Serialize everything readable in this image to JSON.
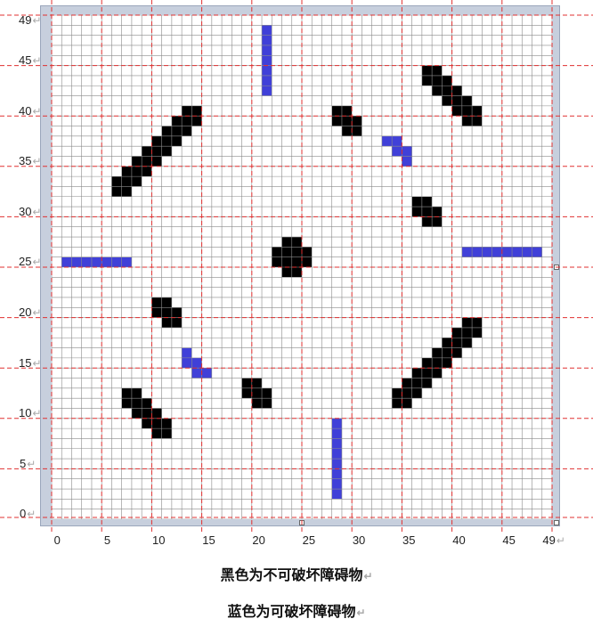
{
  "grid": {
    "size": 50,
    "y_tick_labels": [
      "49",
      "45",
      "40",
      "35",
      "30",
      "25",
      "20",
      "15",
      "10",
      "5",
      "0"
    ],
    "x_tick_labels": [
      "0",
      "5",
      "10",
      "15",
      "20",
      "25",
      "30",
      "35",
      "40",
      "45",
      "49"
    ],
    "line_mark": "↵",
    "colors": {
      "grid_line": "#8a8a8a",
      "guide_line": "#e03030",
      "black_obstacle": "#000000",
      "blue_obstacle": "#4040d8",
      "frame": "#c7cfdd"
    },
    "black_cells": [
      [
        13,
        40
      ],
      [
        14,
        40
      ],
      [
        12,
        39
      ],
      [
        13,
        39
      ],
      [
        14,
        39
      ],
      [
        11,
        38
      ],
      [
        12,
        38
      ],
      [
        13,
        38
      ],
      [
        10,
        37
      ],
      [
        11,
        37
      ],
      [
        12,
        37
      ],
      [
        9,
        36
      ],
      [
        10,
        36
      ],
      [
        11,
        36
      ],
      [
        8,
        35
      ],
      [
        9,
        35
      ],
      [
        10,
        35
      ],
      [
        7,
        34
      ],
      [
        8,
        34
      ],
      [
        9,
        34
      ],
      [
        6,
        33
      ],
      [
        7,
        33
      ],
      [
        8,
        33
      ],
      [
        6,
        32
      ],
      [
        7,
        32
      ],
      [
        37,
        44
      ],
      [
        38,
        44
      ],
      [
        37,
        43
      ],
      [
        38,
        43
      ],
      [
        39,
        43
      ],
      [
        38,
        42
      ],
      [
        39,
        42
      ],
      [
        40,
        42
      ],
      [
        39,
        41
      ],
      [
        40,
        41
      ],
      [
        41,
        41
      ],
      [
        40,
        40
      ],
      [
        41,
        40
      ],
      [
        42,
        40
      ],
      [
        41,
        39
      ],
      [
        42,
        39
      ],
      [
        28,
        40
      ],
      [
        29,
        40
      ],
      [
        28,
        39
      ],
      [
        29,
        39
      ],
      [
        30,
        39
      ],
      [
        29,
        38
      ],
      [
        30,
        38
      ],
      [
        36,
        31
      ],
      [
        37,
        31
      ],
      [
        36,
        30
      ],
      [
        37,
        30
      ],
      [
        38,
        30
      ],
      [
        37,
        29
      ],
      [
        38,
        29
      ],
      [
        23,
        27
      ],
      [
        24,
        27
      ],
      [
        22,
        26
      ],
      [
        23,
        26
      ],
      [
        24,
        26
      ],
      [
        25,
        26
      ],
      [
        22,
        25
      ],
      [
        23,
        25
      ],
      [
        24,
        25
      ],
      [
        25,
        25
      ],
      [
        23,
        24
      ],
      [
        24,
        24
      ],
      [
        10,
        21
      ],
      [
        11,
        21
      ],
      [
        10,
        20
      ],
      [
        11,
        20
      ],
      [
        12,
        20
      ],
      [
        11,
        19
      ],
      [
        12,
        19
      ],
      [
        41,
        19
      ],
      [
        42,
        19
      ],
      [
        40,
        18
      ],
      [
        41,
        18
      ],
      [
        42,
        18
      ],
      [
        39,
        17
      ],
      [
        40,
        17
      ],
      [
        41,
        17
      ],
      [
        38,
        16
      ],
      [
        39,
        16
      ],
      [
        40,
        16
      ],
      [
        37,
        15
      ],
      [
        38,
        15
      ],
      [
        39,
        15
      ],
      [
        36,
        14
      ],
      [
        37,
        14
      ],
      [
        38,
        14
      ],
      [
        35,
        13
      ],
      [
        36,
        13
      ],
      [
        37,
        13
      ],
      [
        34,
        12
      ],
      [
        35,
        12
      ],
      [
        36,
        12
      ],
      [
        34,
        11
      ],
      [
        35,
        11
      ],
      [
        19,
        13
      ],
      [
        20,
        13
      ],
      [
        19,
        12
      ],
      [
        20,
        12
      ],
      [
        21,
        12
      ],
      [
        20,
        11
      ],
      [
        21,
        11
      ],
      [
        7,
        12
      ],
      [
        8,
        12
      ],
      [
        7,
        11
      ],
      [
        8,
        11
      ],
      [
        9,
        11
      ],
      [
        8,
        10
      ],
      [
        9,
        10
      ],
      [
        10,
        10
      ],
      [
        9,
        9
      ],
      [
        10,
        9
      ],
      [
        11,
        9
      ],
      [
        10,
        8
      ],
      [
        11,
        8
      ]
    ],
    "blue_cells": [
      [
        21,
        48
      ],
      [
        21,
        47
      ],
      [
        21,
        46
      ],
      [
        21,
        45
      ],
      [
        21,
        44
      ],
      [
        21,
        43
      ],
      [
        21,
        42
      ],
      [
        33,
        37
      ],
      [
        34,
        37
      ],
      [
        34,
        36
      ],
      [
        35,
        36
      ],
      [
        35,
        35
      ],
      [
        1,
        25
      ],
      [
        2,
        25
      ],
      [
        3,
        25
      ],
      [
        4,
        25
      ],
      [
        5,
        25
      ],
      [
        6,
        25
      ],
      [
        7,
        25
      ],
      [
        41,
        26
      ],
      [
        42,
        26
      ],
      [
        43,
        26
      ],
      [
        44,
        26
      ],
      [
        45,
        26
      ],
      [
        46,
        26
      ],
      [
        47,
        26
      ],
      [
        48,
        26
      ],
      [
        13,
        16
      ],
      [
        13,
        15
      ],
      [
        14,
        15
      ],
      [
        14,
        14
      ],
      [
        15,
        14
      ],
      [
        28,
        9
      ],
      [
        28,
        8
      ],
      [
        28,
        7
      ],
      [
        28,
        6
      ],
      [
        28,
        5
      ],
      [
        28,
        4
      ],
      [
        28,
        3
      ],
      [
        28,
        2
      ]
    ]
  },
  "captions": {
    "black": "黑色为不可破坏障碍物",
    "blue": "蓝色为可破坏障碍物"
  }
}
